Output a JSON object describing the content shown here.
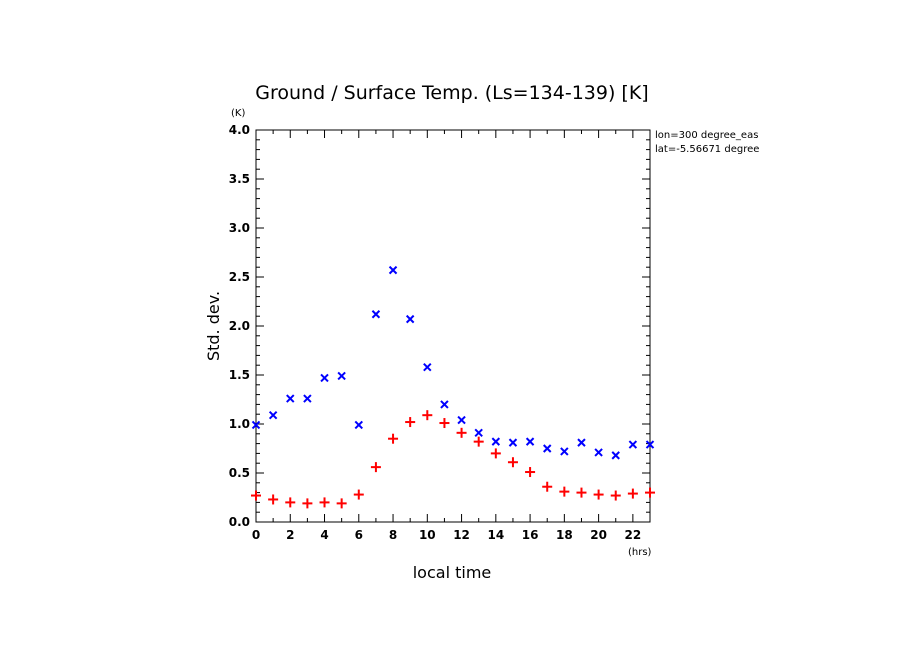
{
  "chart_data": {
    "type": "scatter",
    "title": "Ground / Surface Temp. (Ls=134-139) [K]",
    "xlabel": "local time",
    "ylabel": "Std. dev.",
    "x_unit": "(hrs)",
    "y_unit": "(K)",
    "xlim": [
      0,
      23
    ],
    "ylim": [
      0,
      4.0
    ],
    "x_ticks": [
      "0",
      "2",
      "4",
      "6",
      "8",
      "10",
      "12",
      "14",
      "16",
      "18",
      "20",
      "22"
    ],
    "y_ticks": [
      "0.0",
      "0.5",
      "1.0",
      "1.5",
      "2.0",
      "2.5",
      "3.0",
      "3.5",
      "4.0"
    ],
    "annotations": [
      "lon=300 degree_eas",
      "lat=-5.56671 degree"
    ],
    "grid": false,
    "series": [
      {
        "marker": "x",
        "color": "#0000ff",
        "x": [
          0,
          1,
          2,
          3,
          4,
          5,
          6,
          7,
          8,
          9,
          10,
          11,
          12,
          13,
          14,
          15,
          16,
          17,
          18,
          19,
          20,
          21,
          22,
          23
        ],
        "values": [
          0.99,
          1.09,
          1.26,
          1.26,
          1.47,
          1.49,
          0.99,
          2.12,
          2.57,
          2.07,
          1.58,
          1.2,
          1.04,
          0.91,
          0.82,
          0.81,
          0.82,
          0.75,
          0.72,
          0.81,
          0.71,
          0.68,
          0.79,
          0.79
        ]
      },
      {
        "marker": "+",
        "color": "#ff0000",
        "x": [
          0,
          1,
          2,
          3,
          4,
          5,
          6,
          7,
          8,
          9,
          10,
          11,
          12,
          13,
          14,
          15,
          16,
          17,
          18,
          19,
          20,
          21,
          22,
          23
        ],
        "values": [
          0.27,
          0.23,
          0.2,
          0.19,
          0.2,
          0.19,
          0.28,
          0.56,
          0.85,
          1.02,
          1.09,
          1.01,
          0.91,
          0.82,
          0.7,
          0.61,
          0.51,
          0.36,
          0.31,
          0.3,
          0.28,
          0.27,
          0.29,
          0.3
        ]
      }
    ]
  }
}
